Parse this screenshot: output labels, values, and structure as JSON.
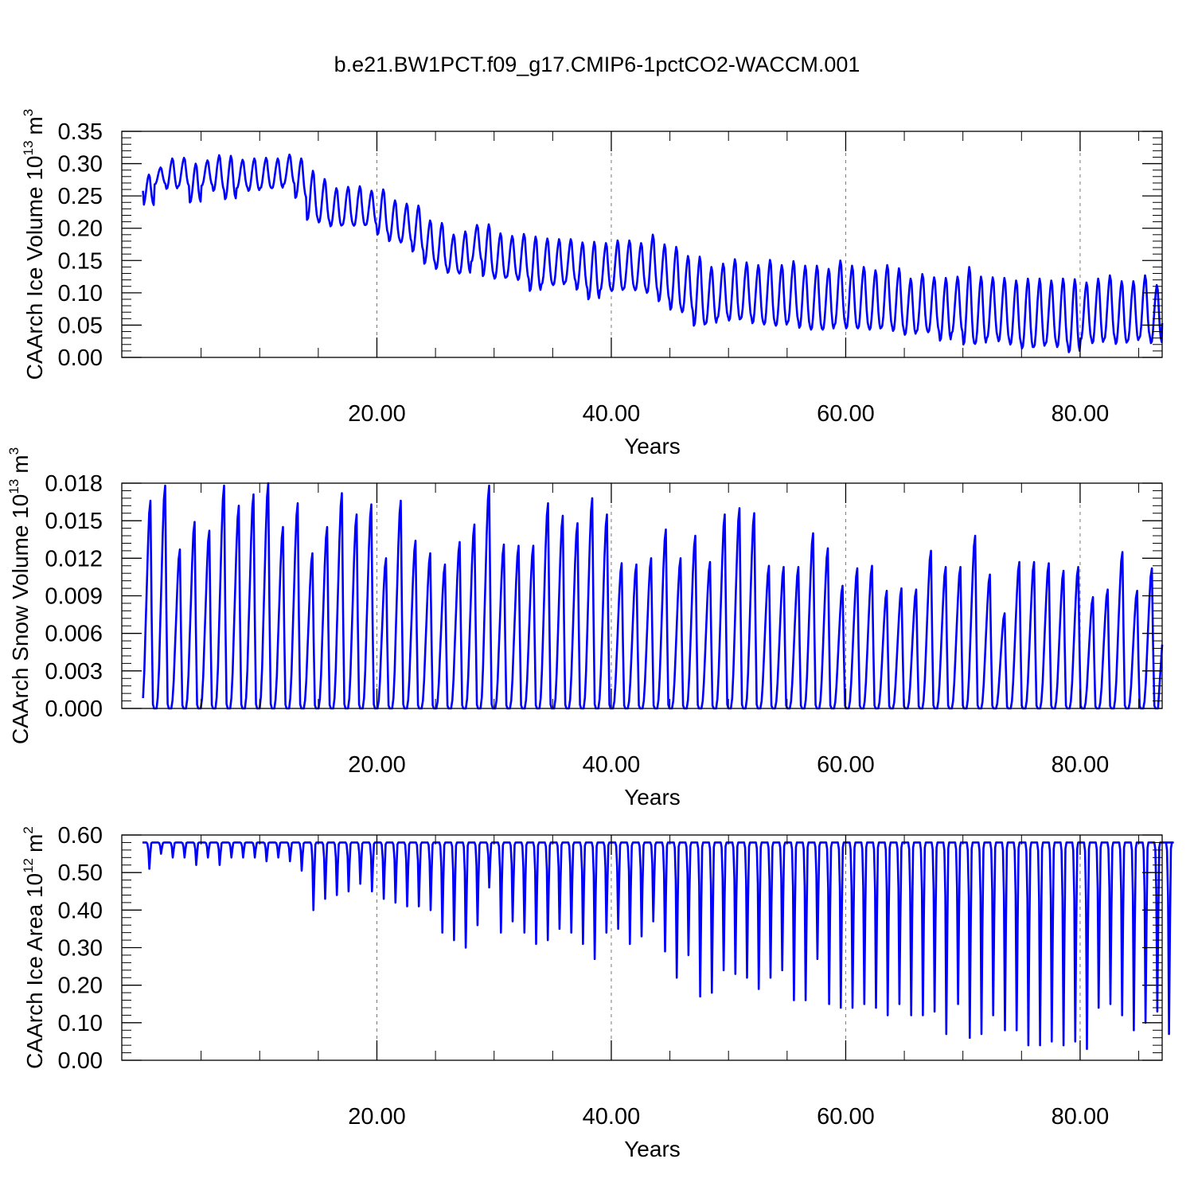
{
  "title": "b.e21.BW1PCT.f09_g17.CMIP6-1pctCO2-WACCM.001",
  "colors": {
    "series": "#0000ff",
    "axis": "#000000",
    "grid": "#777777"
  },
  "chart_data": [
    {
      "type": "line",
      "ylabel": "CAArch Ice Volume 10",
      "ylabel_exp": "13",
      "ylabel_unit": "m",
      "ylabel_unit_exp": "3",
      "xlabel": "Years",
      "xlim": [
        0,
        87
      ],
      "ylim": [
        0,
        0.35
      ],
      "xticks": [
        20,
        40,
        60,
        80
      ],
      "xtick_labels": [
        "20.00",
        "40.00",
        "60.00",
        "80.00"
      ],
      "yticks": [
        0,
        0.05,
        0.1,
        0.15,
        0.2,
        0.25,
        0.3,
        0.35
      ],
      "ytick_labels": [
        "0.00",
        "0.05",
        "0.10",
        "0.15",
        "0.20",
        "0.25",
        "0.30",
        "0.35"
      ],
      "grid": "vertical dashed at 20, 40, 60, 80",
      "series": [
        {
          "annual": [
            [
              0.283,
              0.235
            ],
            [
              0.294,
              0.268
            ],
            [
              0.308,
              0.261
            ],
            [
              0.309,
              0.265
            ],
            [
              0.3,
              0.24
            ],
            [
              0.305,
              0.266
            ],
            [
              0.313,
              0.258
            ],
            [
              0.312,
              0.245
            ],
            [
              0.306,
              0.262
            ],
            [
              0.308,
              0.258
            ],
            [
              0.309,
              0.262
            ],
            [
              0.308,
              0.262
            ],
            [
              0.314,
              0.268
            ],
            [
              0.308,
              0.247
            ],
            [
              0.289,
              0.213
            ],
            [
              0.276,
              0.209
            ],
            [
              0.262,
              0.203
            ],
            [
              0.264,
              0.205
            ],
            [
              0.265,
              0.204
            ],
            [
              0.258,
              0.205
            ],
            [
              0.26,
              0.19
            ],
            [
              0.243,
              0.18
            ],
            [
              0.238,
              0.178
            ],
            [
              0.235,
              0.164
            ],
            [
              0.212,
              0.145
            ],
            [
              0.208,
              0.137
            ],
            [
              0.19,
              0.131
            ],
            [
              0.195,
              0.13
            ],
            [
              0.205,
              0.148
            ],
            [
              0.206,
              0.126
            ],
            [
              0.192,
              0.122
            ],
            [
              0.188,
              0.124
            ],
            [
              0.191,
              0.12
            ],
            [
              0.187,
              0.103
            ],
            [
              0.184,
              0.113
            ],
            [
              0.183,
              0.112
            ],
            [
              0.183,
              0.116
            ],
            [
              0.178,
              0.105
            ],
            [
              0.179,
              0.09
            ],
            [
              0.177,
              0.104
            ],
            [
              0.181,
              0.103
            ],
            [
              0.181,
              0.106
            ],
            [
              0.177,
              0.104
            ],
            [
              0.19,
              0.1
            ],
            [
              0.175,
              0.087
            ],
            [
              0.171,
              0.074
            ],
            [
              0.157,
              0.07
            ],
            [
              0.156,
              0.049
            ],
            [
              0.14,
              0.052
            ],
            [
              0.145,
              0.061
            ],
            [
              0.152,
              0.057
            ],
            [
              0.147,
              0.06
            ],
            [
              0.143,
              0.053
            ],
            [
              0.151,
              0.051
            ],
            [
              0.143,
              0.049
            ],
            [
              0.149,
              0.054
            ],
            [
              0.142,
              0.046
            ],
            [
              0.142,
              0.043
            ],
            [
              0.137,
              0.043
            ],
            [
              0.15,
              0.05
            ],
            [
              0.142,
              0.045
            ],
            [
              0.14,
              0.045
            ],
            [
              0.135,
              0.043
            ],
            [
              0.143,
              0.046
            ],
            [
              0.138,
              0.041
            ],
            [
              0.122,
              0.035
            ],
            [
              0.129,
              0.04
            ],
            [
              0.124,
              0.039
            ],
            [
              0.123,
              0.026
            ],
            [
              0.125,
              0.038
            ],
            [
              0.14,
              0.02
            ],
            [
              0.125,
              0.021
            ],
            [
              0.124,
              0.03
            ],
            [
              0.123,
              0.025
            ],
            [
              0.119,
              0.02
            ],
            [
              0.122,
              0.014
            ],
            [
              0.122,
              0.016
            ],
            [
              0.119,
              0.021
            ],
            [
              0.122,
              0.016
            ],
            [
              0.121,
              0.008
            ],
            [
              0.116,
              0.027
            ],
            [
              0.122,
              0.022
            ],
            [
              0.127,
              0.028
            ],
            [
              0.118,
              0.021
            ],
            [
              0.118,
              0.025
            ],
            [
              0.127,
              0.03
            ],
            [
              0.112,
              0.022
            ]
          ],
          "start": 0.258,
          "end": 0.053
        }
      ]
    },
    {
      "type": "line",
      "ylabel": "CAArch Snow Volume 10",
      "ylabel_exp": "13",
      "ylabel_unit": "m",
      "ylabel_unit_exp": "3",
      "xlabel": "Years",
      "xlim": [
        0,
        87
      ],
      "ylim": [
        0,
        0.018
      ],
      "xticks": [
        20,
        40,
        60,
        80
      ],
      "xtick_labels": [
        "20.00",
        "40.00",
        "60.00",
        "80.00"
      ],
      "yticks": [
        0,
        0.003,
        0.006,
        0.009,
        0.012,
        0.015,
        0.018
      ],
      "ytick_labels": [
        "0.000",
        "0.003",
        "0.006",
        "0.009",
        "0.012",
        "0.015",
        "0.018"
      ],
      "grid": "vertical dashed at 20, 40, 60, 80",
      "series": [
        {
          "annual_peak": [
            0.0166,
            0.0178,
            0.0127,
            0.0149,
            0.0142,
            0.0178,
            0.0162,
            0.0171,
            0.018,
            0.0145,
            0.0164,
            0.0124,
            0.0145,
            0.0172,
            0.0155,
            0.0163,
            0.012,
            0.0166,
            0.0134,
            0.0124,
            0.0115,
            0.0133,
            0.0147,
            0.0178,
            0.0131,
            0.013,
            0.013,
            0.0164,
            0.0154,
            0.0148,
            0.0168,
            0.0155,
            0.0116,
            0.0115,
            0.012,
            0.0143,
            0.012,
            0.0138,
            0.0117,
            0.0155,
            0.016,
            0.0156,
            0.0114,
            0.0113,
            0.0113,
            0.014,
            0.0128,
            0.0098,
            0.0112,
            0.0114,
            0.0094,
            0.0096,
            0.0095,
            0.0126,
            0.0113,
            0.0113,
            0.0138,
            0.0107,
            0.0076,
            0.0117,
            0.0117,
            0.0116,
            0.011,
            0.0113,
            0.0089,
            0.0095,
            0.0125,
            0.0094,
            0.0112
          ],
          "end": 0.0051
        }
      ]
    },
    {
      "type": "line",
      "ylabel": "CAArch Ice Area 10",
      "ylabel_exp": "12",
      "ylabel_unit": "m",
      "ylabel_unit_exp": "2",
      "xlabel": "Years",
      "xlim": [
        0,
        87
      ],
      "ylim": [
        0,
        0.6
      ],
      "xticks": [
        20,
        40,
        60,
        80
      ],
      "xtick_labels": [
        "20.00",
        "40.00",
        "60.00",
        "80.00"
      ],
      "yticks": [
        0,
        0.1,
        0.2,
        0.3,
        0.4,
        0.5,
        0.6
      ],
      "ytick_labels": [
        "0.00",
        "0.10",
        "0.20",
        "0.30",
        "0.40",
        "0.50",
        "0.60"
      ],
      "grid": "vertical dashed at 20, 40, 60, 80",
      "series": [
        {
          "max": 0.58,
          "annual_min": [
            0.51,
            0.55,
            0.54,
            0.54,
            0.52,
            0.54,
            0.52,
            0.54,
            0.54,
            0.54,
            0.53,
            0.54,
            0.53,
            0.505,
            0.4,
            0.43,
            0.44,
            0.45,
            0.47,
            0.45,
            0.43,
            0.42,
            0.41,
            0.41,
            0.4,
            0.34,
            0.32,
            0.3,
            0.36,
            0.46,
            0.34,
            0.37,
            0.34,
            0.31,
            0.32,
            0.35,
            0.34,
            0.31,
            0.27,
            0.34,
            0.35,
            0.31,
            0.33,
            0.37,
            0.29,
            0.22,
            0.28,
            0.17,
            0.18,
            0.24,
            0.23,
            0.22,
            0.19,
            0.22,
            0.24,
            0.16,
            0.16,
            0.27,
            0.15,
            0.14,
            0.14,
            0.15,
            0.14,
            0.12,
            0.15,
            0.12,
            0.12,
            0.13,
            0.07,
            0.15,
            0.06,
            0.07,
            0.12,
            0.08,
            0.08,
            0.04,
            0.04,
            0.05,
            0.04,
            0.05,
            0.03,
            0.14,
            0.15,
            0.12,
            0.08,
            0.1,
            0.13,
            0.07
          ]
        }
      ]
    }
  ]
}
